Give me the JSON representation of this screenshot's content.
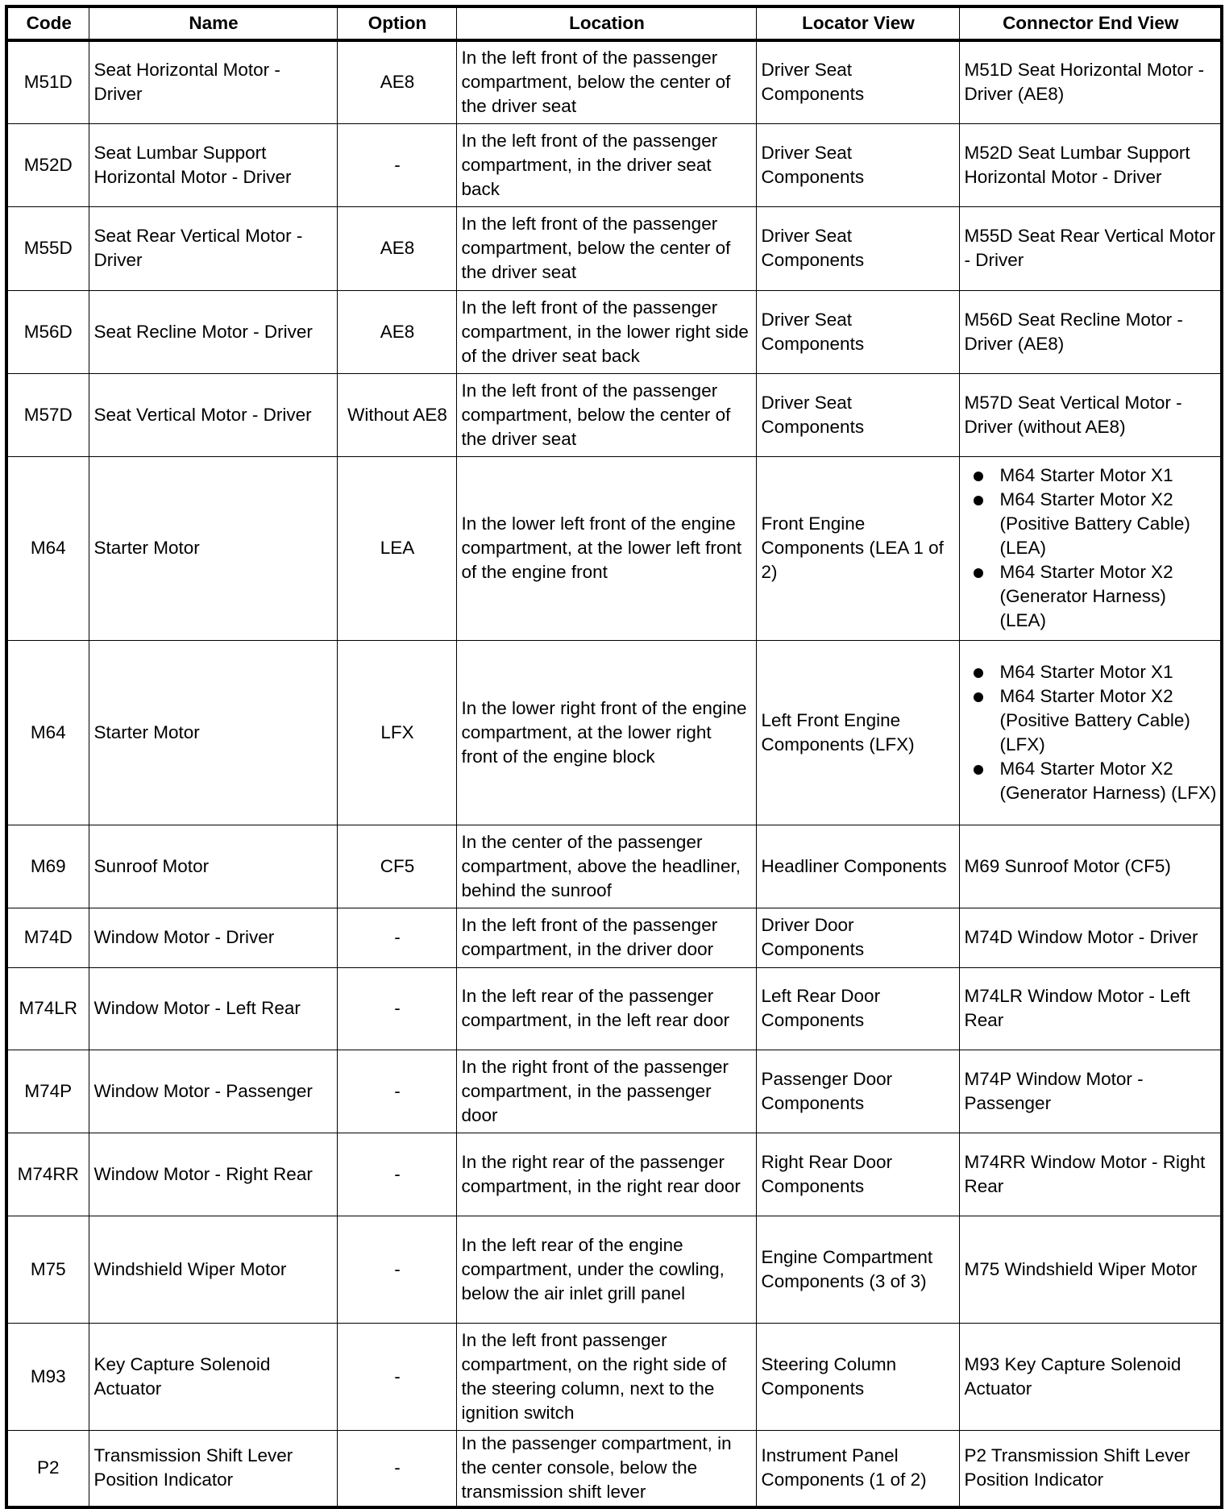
{
  "headers": [
    "Code",
    "Name",
    "Option",
    "Location",
    "Locator View",
    "Connector End View"
  ],
  "rows": [
    {
      "code": "M51D",
      "name": "Seat Horizontal Motor - Driver",
      "option": "AE8",
      "location": "In the left front of the passenger compartment, below the center of the driver seat",
      "locator": "Driver Seat Components",
      "connector": [
        "M51D Seat Horizontal Motor - Driver (AE8)"
      ]
    },
    {
      "code": "M52D",
      "name": "Seat Lumbar Support Horizontal Motor - Driver",
      "option": "-",
      "location": "In the left front of the passenger compartment, in the driver seat back",
      "locator": "Driver Seat Components",
      "connector": [
        "M52D Seat Lumbar Support Horizontal Motor - Driver"
      ]
    },
    {
      "code": "M55D",
      "name": "Seat Rear Vertical Motor - Driver",
      "option": "AE8",
      "location": "In the left front of the passenger compartment, below the center of the driver seat",
      "locator": "Driver Seat Components",
      "connector": [
        "M55D Seat Rear Vertical Motor - Driver"
      ]
    },
    {
      "code": "M56D",
      "name": "Seat Recline Motor - Driver",
      "option": "AE8",
      "location": "In the left front of the passenger compartment, in the lower right side of the driver seat back",
      "locator": "Driver Seat Components",
      "connector": [
        "M56D Seat Recline Motor - Driver (AE8)"
      ]
    },
    {
      "code": "M57D",
      "name": "Seat Vertical Motor - Driver",
      "option": "Without AE8",
      "location": "In the left front of the passenger compartment, below the center of the driver seat",
      "locator": "Driver Seat Components",
      "connector": [
        "M57D Seat Vertical Motor - Driver (without AE8)"
      ]
    },
    {
      "code": "M64",
      "name": "Starter Motor",
      "option": "LEA",
      "location": "In the lower left front of the engine compartment, at the lower left front of the engine front",
      "locator": "Front Engine Components (LEA 1 of 2)",
      "connector": [
        "M64 Starter Motor X1",
        "M64 Starter Motor X2 (Positive Battery Cable) (LEA)",
        "M64 Starter Motor X2 (Generator Harness) (LEA)"
      ],
      "bulleted": true
    },
    {
      "code": "M64",
      "name": "Starter Motor",
      "option": "LFX",
      "location": "In the lower right front of the engine compartment, at the lower right front of the engine block",
      "locator": "Left Front Engine Components (LFX)",
      "connector": [
        "M64 Starter Motor X1",
        "M64 Starter Motor X2 (Positive Battery Cable) (LFX)",
        "M64 Starter Motor X2 (Generator Harness) (LFX)"
      ],
      "bulleted": true
    },
    {
      "code": "M69",
      "name": "Sunroof Motor",
      "option": "CF5",
      "location": "In the center of the passenger compartment, above the headliner, behind the sunroof",
      "locator": "Headliner Components",
      "connector": [
        "M69 Sunroof Motor (CF5)"
      ]
    },
    {
      "code": "M74D",
      "name": "Window Motor - Driver",
      "option": "-",
      "location": "In the left front of the passenger compartment, in the driver door",
      "locator": "Driver Door Components",
      "connector": [
        "M74D Window Motor - Driver"
      ]
    },
    {
      "code": "M74LR",
      "name": "Window Motor - Left Rear",
      "option": "-",
      "location": "In the left rear of the passenger compartment, in the left rear door",
      "locator": "Left Rear Door Components",
      "connector": [
        "M74LR Window Motor - Left Rear"
      ]
    },
    {
      "code": "M74P",
      "name": "Window Motor - Passenger",
      "option": "-",
      "location": "In the right front of the passenger compartment, in the passenger door",
      "locator": "Passenger Door Components",
      "connector": [
        "M74P Window Motor - Passenger"
      ]
    },
    {
      "code": "M74RR",
      "name": "Window Motor - Right Rear",
      "option": "-",
      "location": "In the right rear of the passenger compartment, in the right rear door",
      "locator": "Right Rear Door Components",
      "connector": [
        "M74RR Window Motor - Right Rear"
      ]
    },
    {
      "code": "M75",
      "name": "Windshield Wiper Motor",
      "option": "-",
      "location": "In the left rear of the engine compartment, under the cowling, below the air inlet grill panel",
      "locator": "Engine Compartment Components (3 of 3)",
      "connector": [
        "M75 Windshield Wiper Motor"
      ]
    },
    {
      "code": "M93",
      "name": "Key Capture Solenoid Actuator",
      "option": "-",
      "location": "In the left front passenger compartment, on the right side of the steering column, next to the ignition switch",
      "locator": "Steering Column Components",
      "connector": [
        "M93 Key Capture Solenoid Actuator"
      ]
    },
    {
      "code": "P2",
      "name": "Transmission Shift Lever Position Indicator",
      "option": "-",
      "location": "In the passenger compartment, in the center console, below the transmission shift lever",
      "locator": "Instrument Panel Components (1 of 2)",
      "connector": [
        "P2 Transmission Shift Lever Position Indicator"
      ]
    }
  ]
}
